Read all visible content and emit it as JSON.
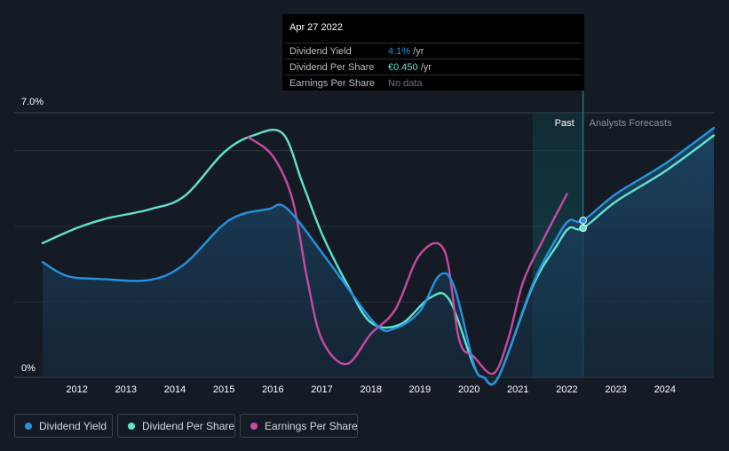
{
  "chart_data": {
    "type": "line",
    "y_axis": {
      "top_label": "7.0%",
      "bottom_label": "0%",
      "ylim": [
        0,
        7.0
      ]
    },
    "x_ticks": [
      "2012",
      "2013",
      "2014",
      "2015",
      "2016",
      "2017",
      "2018",
      "2019",
      "2020",
      "2021",
      "2022",
      "2023",
      "2024"
    ],
    "x_range": [
      2011.3,
      2025.0
    ],
    "regions": {
      "past_label": "Past",
      "forecast_label": "Analysts Forecasts",
      "past_start": 2021.3,
      "past_end": 2022.33
    },
    "series": [
      {
        "name": "Dividend Yield",
        "color": "#2394df",
        "area": true,
        "points": [
          [
            2011.3,
            3.05
          ],
          [
            2011.8,
            2.68
          ],
          [
            2012.5,
            2.6
          ],
          [
            2013.5,
            2.58
          ],
          [
            2014.2,
            3.0
          ],
          [
            2015.1,
            4.15
          ],
          [
            2015.9,
            4.45
          ],
          [
            2016.3,
            4.45
          ],
          [
            2017.2,
            2.95
          ],
          [
            2018.1,
            1.4
          ],
          [
            2018.5,
            1.3
          ],
          [
            2019.0,
            1.75
          ],
          [
            2019.4,
            2.7
          ],
          [
            2019.7,
            2.4
          ],
          [
            2020.1,
            0.35
          ],
          [
            2020.3,
            0.0
          ],
          [
            2020.6,
            0.0
          ],
          [
            2021.3,
            2.45
          ],
          [
            2021.8,
            3.7
          ],
          [
            2022.05,
            4.15
          ],
          [
            2022.33,
            4.15
          ],
          [
            2023.0,
            4.85
          ],
          [
            2024.0,
            5.65
          ],
          [
            2025.0,
            6.6
          ]
        ]
      },
      {
        "name": "Dividend Per Share",
        "color": "#5fe3cd",
        "area": false,
        "points": [
          [
            2011.3,
            3.55
          ],
          [
            2012.0,
            3.95
          ],
          [
            2012.6,
            4.2
          ],
          [
            2013.5,
            4.45
          ],
          [
            2014.2,
            4.8
          ],
          [
            2015.0,
            5.95
          ],
          [
            2015.6,
            6.4
          ],
          [
            2016.2,
            6.45
          ],
          [
            2016.6,
            5.15
          ],
          [
            2017.0,
            3.8
          ],
          [
            2017.5,
            2.5
          ],
          [
            2018.0,
            1.45
          ],
          [
            2018.6,
            1.4
          ],
          [
            2019.2,
            2.1
          ],
          [
            2019.6,
            2.05
          ],
          [
            2020.1,
            0.3
          ],
          [
            2020.3,
            0.0
          ],
          [
            2020.6,
            0.0
          ],
          [
            2021.3,
            2.4
          ],
          [
            2021.8,
            3.5
          ],
          [
            2022.05,
            3.95
          ],
          [
            2022.33,
            3.95
          ],
          [
            2023.0,
            4.65
          ],
          [
            2024.0,
            5.45
          ],
          [
            2025.0,
            6.4
          ]
        ]
      },
      {
        "name": "Earnings Per Share",
        "color": "#c74aa1",
        "area": false,
        "points": [
          [
            2015.5,
            6.35
          ],
          [
            2016.0,
            5.85
          ],
          [
            2016.4,
            4.7
          ],
          [
            2016.7,
            2.6
          ],
          [
            2017.0,
            1.0
          ],
          [
            2017.5,
            0.35
          ],
          [
            2018.0,
            1.15
          ],
          [
            2018.5,
            1.8
          ],
          [
            2019.0,
            3.25
          ],
          [
            2019.5,
            3.35
          ],
          [
            2019.8,
            1.0
          ],
          [
            2020.1,
            0.55
          ],
          [
            2020.5,
            0.1
          ],
          [
            2020.8,
            1.0
          ],
          [
            2021.1,
            2.5
          ],
          [
            2021.5,
            3.6
          ],
          [
            2022.0,
            4.85
          ]
        ]
      }
    ],
    "highlight": {
      "x": 2022.33,
      "yield": 4.15,
      "dps": 3.95
    }
  },
  "tooltip": {
    "date": "Apr 27 2022",
    "rows": [
      {
        "label": "Dividend Yield",
        "value": "4.1%",
        "unit": " /yr",
        "color": "#2394df"
      },
      {
        "label": "Dividend Per Share",
        "value": "€0.450",
        "unit": " /yr",
        "color": "#5fe3cd"
      },
      {
        "label": "Earnings Per Share",
        "value": "No data",
        "unit": "",
        "color": "#6c7279"
      }
    ]
  },
  "legend": [
    {
      "label": "Dividend Yield",
      "color": "#2394df"
    },
    {
      "label": "Dividend Per Share",
      "color": "#5fe3cd"
    },
    {
      "label": "Earnings Per Share",
      "color": "#c74aa1"
    }
  ]
}
